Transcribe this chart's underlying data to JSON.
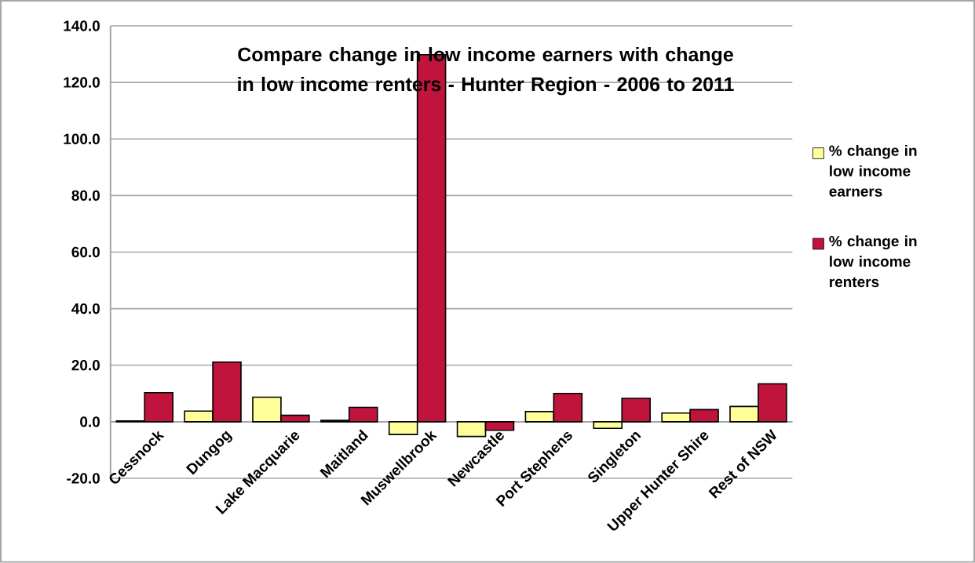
{
  "chart_data": {
    "type": "bar",
    "title": "Compare change in low income earners with change in low income renters - Hunter Region - 2006 to 2011",
    "categories": [
      "Cessnock",
      "Dungog",
      "Lake Macquarie",
      "Maitland",
      "Muswellbrook",
      "Newcastle",
      "Port Stephens",
      "Singleton",
      "Upper Hunter Shire",
      "Rest of NSW"
    ],
    "series": [
      {
        "name": "% change in low income earners",
        "color": "#ffff99",
        "values": [
          0.3,
          3.8,
          8.7,
          0.5,
          -4.5,
          -5.2,
          3.6,
          -2.3,
          3.1,
          5.4
        ]
      },
      {
        "name": "% change in low income renters",
        "color": "#c0143c",
        "values": [
          10.3,
          21.1,
          2.3,
          5.1,
          129.8,
          -3.0,
          10.0,
          8.3,
          4.3,
          13.4
        ]
      }
    ],
    "ylim": [
      -20,
      140
    ],
    "yticks": [
      {
        "value": -20,
        "label": "-20.0"
      },
      {
        "value": 0,
        "label": "0.0"
      },
      {
        "value": 20,
        "label": "20.0"
      },
      {
        "value": 40,
        "label": "40.0"
      },
      {
        "value": 60,
        "label": "60.0"
      },
      {
        "value": 80,
        "label": "80.0"
      },
      {
        "value": 100,
        "label": "100.0"
      },
      {
        "value": 120,
        "label": "120.0"
      },
      {
        "value": 140,
        "label": "140.0"
      }
    ],
    "grid": "y",
    "legend": "right"
  }
}
